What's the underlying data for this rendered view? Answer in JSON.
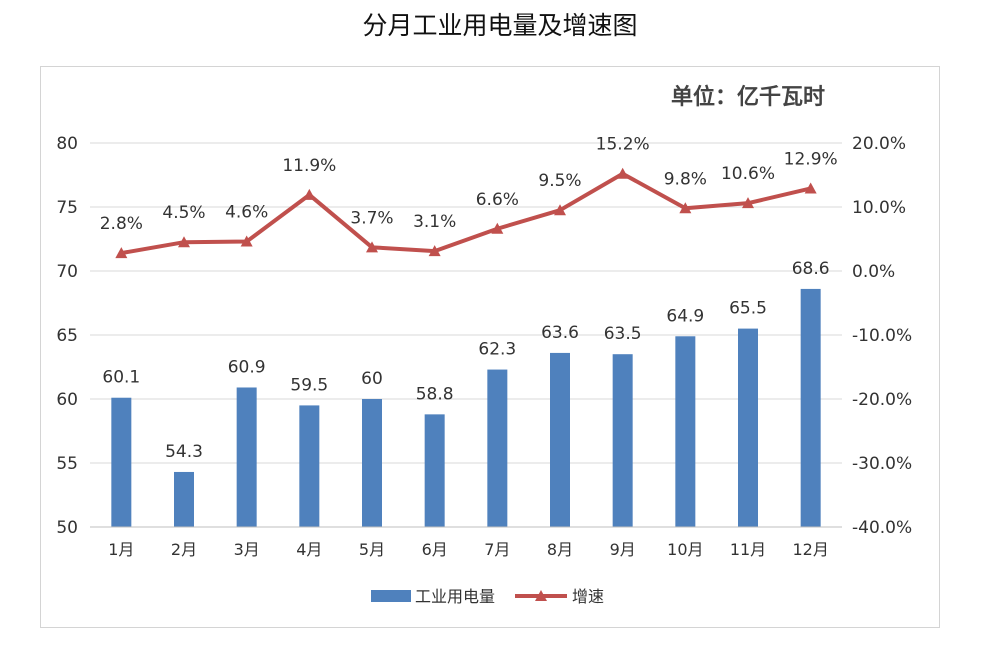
{
  "title": "分月工业用电量及增速图",
  "unit_label": "单位：亿千瓦时",
  "colors": {
    "bar": "#4f81bd",
    "line": "#c0504d"
  },
  "chart_data": {
    "type": "bar",
    "categories": [
      "1月",
      "2月",
      "3月",
      "4月",
      "5月",
      "6月",
      "7月",
      "8月",
      "9月",
      "10月",
      "11月",
      "12月"
    ],
    "series": [
      {
        "name": "工业用电量",
        "type": "bar",
        "axis": "left",
        "values": [
          60.1,
          54.3,
          60.9,
          59.5,
          60,
          58.8,
          62.3,
          63.6,
          63.5,
          64.9,
          65.5,
          68.6
        ],
        "labels": [
          "60.1",
          "54.3",
          "60.9",
          "59.5",
          "60",
          "58.8",
          "62.3",
          "63.6",
          "63.5",
          "64.9",
          "65.5",
          "68.6"
        ]
      },
      {
        "name": "增速",
        "type": "line",
        "axis": "right",
        "marker": "triangle",
        "values": [
          2.8,
          4.5,
          4.6,
          11.9,
          3.7,
          3.1,
          6.6,
          9.5,
          15.2,
          9.8,
          10.6,
          12.9
        ],
        "labels": [
          "2.8%",
          "4.5%",
          "4.6%",
          "11.9%",
          "3.7%",
          "3.1%",
          "6.6%",
          "9.5%",
          "15.2%",
          "9.8%",
          "10.6%",
          "12.9%"
        ]
      }
    ],
    "y_left": {
      "lim": [
        50,
        80
      ],
      "ticks": [
        "50",
        "55",
        "60",
        "65",
        "70",
        "75",
        "80"
      ]
    },
    "y_right": {
      "lim": [
        -40,
        20
      ],
      "ticks": [
        "-40.0%",
        "-30.0%",
        "-20.0%",
        "-10.0%",
        "0.0%",
        "10.0%",
        "20.0%"
      ]
    },
    "grid": true,
    "legend_position": "bottom"
  }
}
